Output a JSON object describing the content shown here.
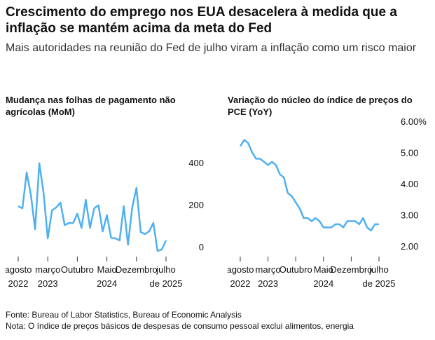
{
  "title": "Crescimento do emprego nos EUA desacelera à medida que a inflação se mantém acima da meta do Fed",
  "subtitle": "Mais autoridades na reunião do Fed de julho viram a inflação como um risco maior",
  "source": "Fonte: Bureau of Labor Statistics, Bureau of Economic Analysis",
  "note": "Nota: O índice de preços básicos de despesas de consumo pessoal exclui alimentos, energia",
  "chart_data": [
    {
      "type": "line",
      "title": "Mudança nas folhas de pagamento não agrícolas (MoM)",
      "x": [
        "2022-08",
        "2022-09",
        "2022-10",
        "2022-11",
        "2022-12",
        "2023-01",
        "2023-02",
        "2023-03",
        "2023-04",
        "2023-05",
        "2023-06",
        "2023-07",
        "2023-08",
        "2023-09",
        "2023-10",
        "2023-11",
        "2023-12",
        "2024-01",
        "2024-02",
        "2024-03",
        "2024-04",
        "2024-05",
        "2024-06",
        "2024-07",
        "2024-08",
        "2024-09",
        "2024-10",
        "2024-11",
        "2024-12",
        "2025-01",
        "2025-02",
        "2025-03",
        "2025-04",
        "2025-05",
        "2025-06",
        "2025-07"
      ],
      "values": [
        193,
        183,
        353,
        247,
        83,
        397,
        257,
        40,
        173,
        187,
        210,
        103,
        113,
        113,
        157,
        90,
        223,
        90,
        183,
        197,
        73,
        150,
        43,
        40,
        30,
        193,
        10,
        187,
        280,
        70,
        60,
        73,
        113,
        -20,
        -13,
        30
      ],
      "color": "#4fb0f0",
      "ylim": [
        -30,
        600
      ],
      "yticks": [
        0,
        200,
        400
      ],
      "xticks": [
        {
          "value": "2022-08",
          "label": [
            "agosto",
            "2022"
          ]
        },
        {
          "value": "2023-03",
          "label": [
            "março",
            "2023"
          ]
        },
        {
          "value": "2023-10",
          "label": [
            "Outubro"
          ]
        },
        {
          "value": "2024-05",
          "label": [
            "Maio",
            "2024"
          ]
        },
        {
          "value": "2024-12",
          "label": [
            "Dezembro"
          ]
        },
        {
          "value": "2025-07",
          "label": [
            "julho",
            "de 2025"
          ]
        }
      ]
    },
    {
      "type": "line",
      "title": "Variação do núcleo do índice de preços do PCE (YoY)",
      "x": [
        "2022-08",
        "2022-09",
        "2022-10",
        "2022-11",
        "2022-12",
        "2023-01",
        "2023-02",
        "2023-03",
        "2023-04",
        "2023-05",
        "2023-06",
        "2023-07",
        "2023-08",
        "2023-09",
        "2023-10",
        "2023-11",
        "2023-12",
        "2024-01",
        "2024-02",
        "2024-03",
        "2024-04",
        "2024-05",
        "2024-06",
        "2024-07",
        "2024-08",
        "2024-09",
        "2024-10",
        "2024-11",
        "2024-12",
        "2025-01",
        "2025-02",
        "2025-03",
        "2025-04",
        "2025-05",
        "2025-06",
        "2025-07"
      ],
      "values": [
        5.2,
        5.4,
        5.3,
        5.0,
        4.8,
        4.8,
        4.7,
        4.6,
        4.7,
        4.6,
        4.3,
        4.2,
        3.7,
        3.6,
        3.4,
        3.2,
        2.9,
        2.9,
        2.8,
        2.9,
        2.8,
        2.6,
        2.6,
        2.6,
        2.7,
        2.7,
        2.6,
        2.8,
        2.8,
        2.8,
        2.7,
        2.9,
        2.6,
        2.5,
        2.7,
        2.7
      ],
      "color": "#4fb0f0",
      "ylim": [
        1.8,
        6.0
      ],
      "yticks": [
        {
          "value": 6,
          "label": "6.00%"
        },
        {
          "value": 5,
          "label": "5.00"
        },
        {
          "value": 4,
          "label": "4.00"
        },
        {
          "value": 3,
          "label": "3.00"
        },
        {
          "value": 2,
          "label": "2.00"
        }
      ],
      "xticks": [
        {
          "value": "2022-08",
          "label": [
            "agosto",
            "2022"
          ]
        },
        {
          "value": "2023-03",
          "label": [
            "março",
            "2023"
          ]
        },
        {
          "value": "2023-10",
          "label": [
            "Outubro"
          ]
        },
        {
          "value": "2024-05",
          "label": [
            "Maio",
            "2024"
          ]
        },
        {
          "value": "2024-12",
          "label": [
            "Dezembro"
          ]
        },
        {
          "value": "2025-07",
          "label": [
            "julho",
            "de 2025"
          ]
        }
      ]
    }
  ]
}
